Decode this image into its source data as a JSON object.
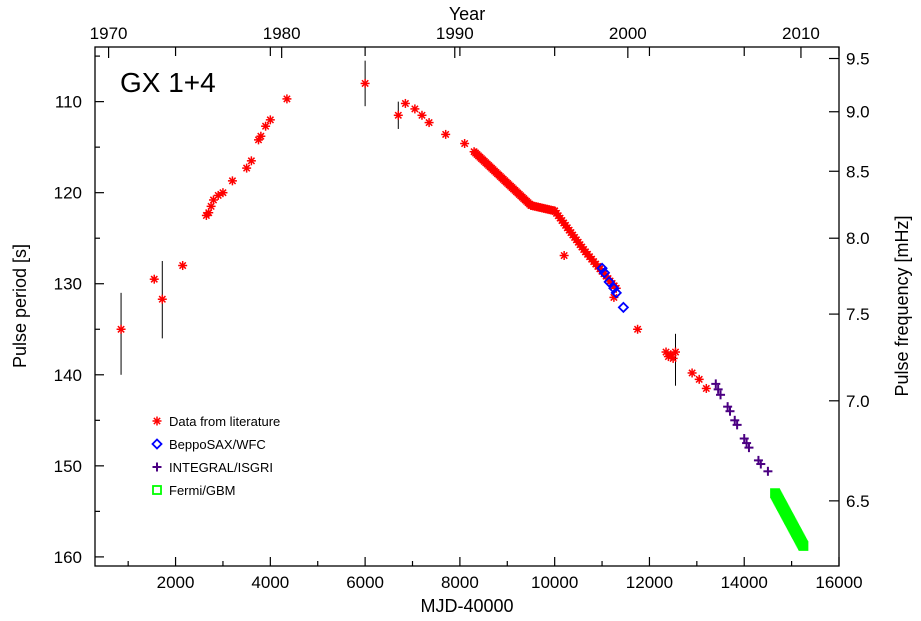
{
  "chart_data": {
    "type": "scatter",
    "annotation": "GX 1+4",
    "xlabel": "MJD-40000",
    "ylabel": "Pulse period [s]",
    "top_xlabel": "Year",
    "right_ylabel": "Pulse frequency [mHz]",
    "xlim": [
      300,
      16000
    ],
    "ylim": [
      161,
      104
    ],
    "x_ticks": [
      2000,
      4000,
      6000,
      8000,
      10000,
      12000,
      14000,
      16000
    ],
    "y_ticks": [
      110,
      120,
      130,
      140,
      150,
      160
    ],
    "top_ticks": [
      {
        "label": "1970",
        "mjd": 587
      },
      {
        "label": "1980",
        "mjd": 4239
      },
      {
        "label": "1990",
        "mjd": 7892
      },
      {
        "label": "2000",
        "mjd": 11544
      },
      {
        "label": "2010",
        "mjd": 15197
      }
    ],
    "right_ticks": [
      {
        "label": "9.5",
        "freq": 9.5
      },
      {
        "label": "9.0",
        "freq": 9.0
      },
      {
        "label": "8.5",
        "freq": 8.5
      },
      {
        "label": "8.0",
        "freq": 8.0
      },
      {
        "label": "7.5",
        "freq": 7.5
      },
      {
        "label": "7.0",
        "freq": 7.0
      },
      {
        "label": "6.5",
        "freq": 6.5
      }
    ],
    "legend": {
      "position": "bottom-left",
      "entries": [
        {
          "label": "Data from literature",
          "marker": "asterisk",
          "color": "#ff0000"
        },
        {
          "label": "BeppoSAX/WFC",
          "marker": "diamond",
          "color": "#0000ff"
        },
        {
          "label": "INTEGRAL/ISGRI",
          "marker": "plus",
          "color": "#4b0082"
        },
        {
          "label": "Fermi/GBM",
          "marker": "square",
          "color": "#00ff00"
        }
      ]
    },
    "series": [
      {
        "marker": "asterisk",
        "color": "#ff0000",
        "points": [
          [
            850,
            135.0
          ],
          [
            1550,
            129.5
          ],
          [
            1720,
            131.7
          ],
          [
            2150,
            128.0
          ],
          [
            2650,
            122.5
          ],
          [
            2700,
            122.2
          ],
          [
            2750,
            121.5
          ],
          [
            2800,
            120.8
          ],
          [
            2900,
            120.3
          ],
          [
            3000,
            120.0
          ],
          [
            3200,
            118.7
          ],
          [
            3500,
            117.3
          ],
          [
            3600,
            116.5
          ],
          [
            3750,
            114.2
          ],
          [
            3800,
            113.8
          ],
          [
            3900,
            112.7
          ],
          [
            4000,
            112.0
          ],
          [
            4350,
            109.7
          ],
          [
            6000,
            108.0
          ],
          [
            6700,
            111.5
          ],
          [
            6850,
            110.2
          ],
          [
            7050,
            110.8
          ],
          [
            7200,
            111.5
          ],
          [
            7350,
            112.3
          ],
          [
            7700,
            113.6
          ],
          [
            8100,
            114.6
          ],
          [
            10200,
            126.9
          ],
          [
            11250,
            131.5
          ],
          [
            11750,
            135.0
          ],
          [
            12350,
            137.5
          ],
          [
            12400,
            138.0
          ],
          [
            12450,
            137.8
          ],
          [
            12500,
            138.2
          ],
          [
            12550,
            137.5
          ],
          [
            12900,
            139.8
          ],
          [
            13050,
            140.5
          ],
          [
            13200,
            141.5
          ]
        ],
        "segments": [
          {
            "from": [
              8300,
              115.5
            ],
            "to": [
              9500,
              121.4
            ],
            "count": 40
          },
          {
            "from": [
              9500,
              121.4
            ],
            "to": [
              10000,
              122.0
            ],
            "count": 14
          },
          {
            "from": [
              10000,
              122.0
            ],
            "to": [
              10650,
              126.5
            ],
            "count": 18
          },
          {
            "from": [
              10650,
              126.5
            ],
            "to": [
              11300,
              130.5
            ],
            "count": 16
          }
        ]
      },
      {
        "marker": "diamond",
        "color": "#0000ff",
        "points": [
          [
            11000,
            128.3
          ],
          [
            11050,
            128.8
          ],
          [
            11150,
            129.8
          ],
          [
            11250,
            130.5
          ],
          [
            11300,
            131.0
          ],
          [
            11450,
            132.6
          ]
        ]
      },
      {
        "marker": "plus",
        "color": "#4b0082",
        "points": [
          [
            13400,
            141.0
          ],
          [
            13450,
            141.6
          ],
          [
            13500,
            142.2
          ],
          [
            13650,
            143.5
          ],
          [
            13700,
            144.0
          ],
          [
            13800,
            145.0
          ],
          [
            13850,
            145.5
          ],
          [
            14000,
            147.0
          ],
          [
            14050,
            147.5
          ],
          [
            14100,
            148.0
          ],
          [
            14300,
            149.4
          ],
          [
            14350,
            149.8
          ],
          [
            14500,
            150.6
          ]
        ]
      },
      {
        "marker": "square",
        "color": "#00ff00",
        "segments": [
          {
            "from": [
              14650,
              153.0
            ],
            "to": [
              15250,
              158.8
            ],
            "count": 50
          }
        ]
      }
    ],
    "error_bars": [
      {
        "x": 850,
        "y_low": 131.0,
        "y_high": 140.0
      },
      {
        "x": 1720,
        "y_low": 127.5,
        "y_high": 136.0
      },
      {
        "x": 6000,
        "y_low": 105.5,
        "y_high": 110.5
      },
      {
        "x": 6700,
        "y_low": 110.0,
        "y_high": 113.0
      },
      {
        "x": 12550,
        "y_low": 135.5,
        "y_high": 141.2
      }
    ]
  }
}
